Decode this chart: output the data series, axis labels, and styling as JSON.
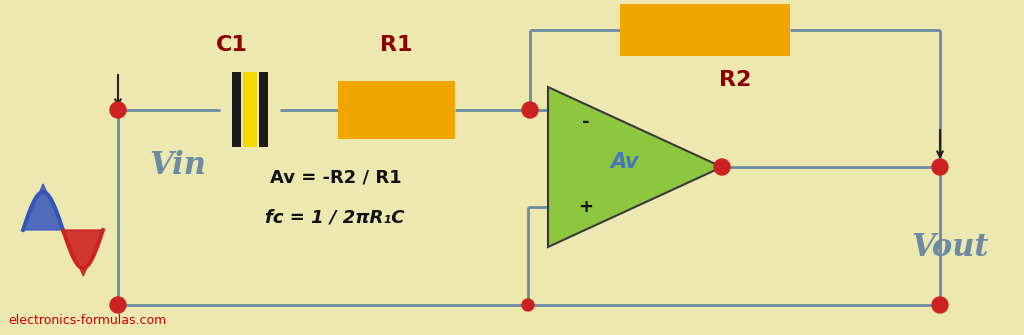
{
  "bg_color": "#EDE8B0",
  "wire_color": "#6B8BA4",
  "wire_lw": 2.0,
  "node_color": "#CC2222",
  "label_vin": "Vin",
  "label_vout": "Vout",
  "label_c1": "C1",
  "label_r1": "R1",
  "label_r2": "R2",
  "label_av": "Av",
  "formula1": "Av = -R2 / R1",
  "formula2": "fc = 1 / 2πR₁C",
  "watermark": "electronics-formulas.com",
  "opamp_color": "#8DC63F",
  "opamp_edge": "#3A3A3A",
  "resistor_color": "#F0A500",
  "cap_color_dark": "#1A1A1A",
  "cap_color_yellow": "#F5D800",
  "dark_red": "#8B0000",
  "formula_color": "#111111",
  "label_color": "#6B8BA4",
  "watermark_color": "#CC0000",
  "sine_blue": "#3355BB",
  "sine_red": "#CC2222"
}
